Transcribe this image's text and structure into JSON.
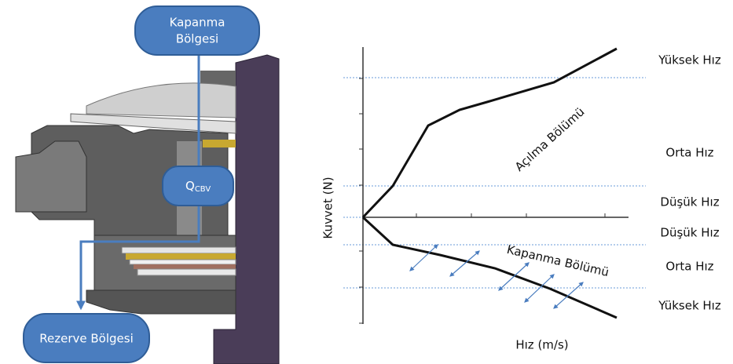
{
  "nodes": [
    {
      "label_lines": [
        "Kapanma",
        "Bölgesi"
      ]
    },
    {
      "label": "Q",
      "subscript": "CBV"
    },
    {
      "label": "Rezerve Bölgesi"
    }
  ],
  "graph": {
    "y_axis_label": "Kuvvet (N)",
    "x_axis_label": "Hız (m/s)",
    "regions": [
      "Açılma Bölümü",
      "Kapanma Bölümü"
    ],
    "speed_labels": [
      "Yüksek Hız",
      "Orta Hız",
      "Düşük Hız",
      "Düşük Hız",
      "Orta Hız",
      "Yüksek Hız"
    ]
  }
}
